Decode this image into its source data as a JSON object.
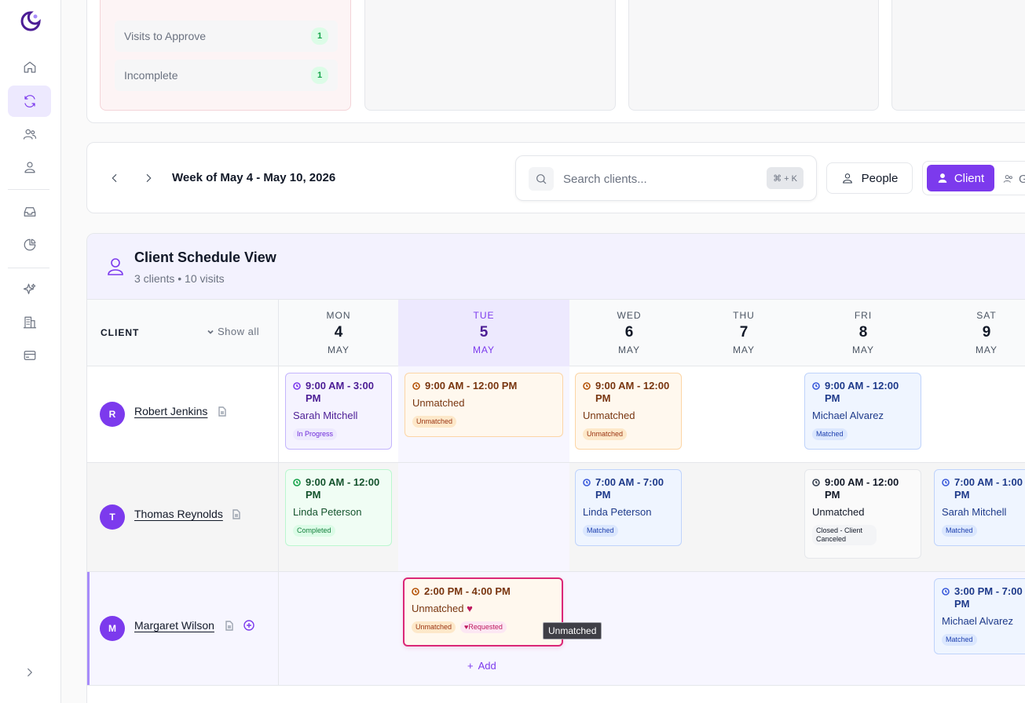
{
  "sidebar": {
    "logo_icon": "moon-logo",
    "items": [
      {
        "icon": "home-icon"
      },
      {
        "icon": "sync-icon",
        "active": true
      },
      {
        "icon": "users-icon"
      },
      {
        "icon": "user-icon"
      },
      {
        "icon": "inbox-icon"
      },
      {
        "icon": "pie-chart-icon"
      },
      {
        "icon": "sparkles-icon"
      },
      {
        "icon": "building-icon"
      },
      {
        "icon": "credit-card-icon"
      }
    ],
    "expand_icon": "chevron-right-icon"
  },
  "summary": {
    "stats": [
      {
        "label": "Visits to Approve",
        "count": "1"
      },
      {
        "label": "Incomplete",
        "count": "1"
      }
    ]
  },
  "toolbar": {
    "week_label": "Week of May 4 - May 10, 2026",
    "search_placeholder": "Search clients...",
    "search_shortcut": "⌘ + K",
    "people_label": "People",
    "client_label": "Client",
    "group_label": "G"
  },
  "schedule": {
    "title": "Client Schedule View",
    "subtitle": "3 clients • 10 visits",
    "client_col_label": "CLIENT",
    "show_all_label": "Show all",
    "days": [
      {
        "name": "MON",
        "num": "4",
        "month": "MAY"
      },
      {
        "name": "TUE",
        "num": "5",
        "month": "MAY",
        "today": true
      },
      {
        "name": "WED",
        "num": "6",
        "month": "MAY"
      },
      {
        "name": "THU",
        "num": "7",
        "month": "MAY"
      },
      {
        "name": "FRI",
        "num": "8",
        "month": "MAY"
      },
      {
        "name": "SAT",
        "num": "9",
        "month": "MAY"
      }
    ],
    "clients": [
      {
        "initial": "R",
        "name": "Robert Jenkins",
        "visits": [
          {
            "time": "9:00 AM - 3:00 PM",
            "caregiver": "Sarah Mitchell",
            "status": "In Progress"
          },
          {
            "time": "9:00 AM - 12:00 PM",
            "caregiver": "Unmatched",
            "status": "Unmatched"
          },
          {
            "time": "9:00 AM - 12:00 PM",
            "caregiver": "Unmatched",
            "status": "Unmatched"
          },
          {
            "time": "9:00 AM - 12:00 PM",
            "caregiver": "Michael Alvarez",
            "status": "Matched"
          }
        ]
      },
      {
        "initial": "T",
        "name": "Thomas Reynolds",
        "visits": [
          {
            "time": "9:00 AM - 12:00 PM",
            "caregiver": "Linda Peterson",
            "status": "Completed"
          },
          {
            "time": "7:00 AM - 7:00 PM",
            "caregiver": "Linda Peterson",
            "status": "Matched"
          },
          {
            "time": "9:00 AM - 12:00 PM",
            "caregiver": "Unmatched",
            "status": "Closed - Client Canceled"
          },
          {
            "time": "7:00 AM - 1:00 PM",
            "caregiver": "Sarah Mitchell",
            "status": "Matched"
          }
        ]
      },
      {
        "initial": "M",
        "name": "Margaret Wilson",
        "visits": [
          {
            "time": "2:00 PM - 4:00 PM",
            "caregiver": "Unmatched",
            "status": "Unmatched",
            "extra_tag": "Requested"
          },
          {
            "time": "3:00 PM - 7:00 PM",
            "caregiver": "Michael Alvarez",
            "status": "Matched"
          }
        ],
        "add_label": "Add",
        "tooltip": "Unmatched"
      }
    ]
  },
  "colors": {
    "accent": "#7c3aed",
    "selected_border": "#db2777"
  }
}
